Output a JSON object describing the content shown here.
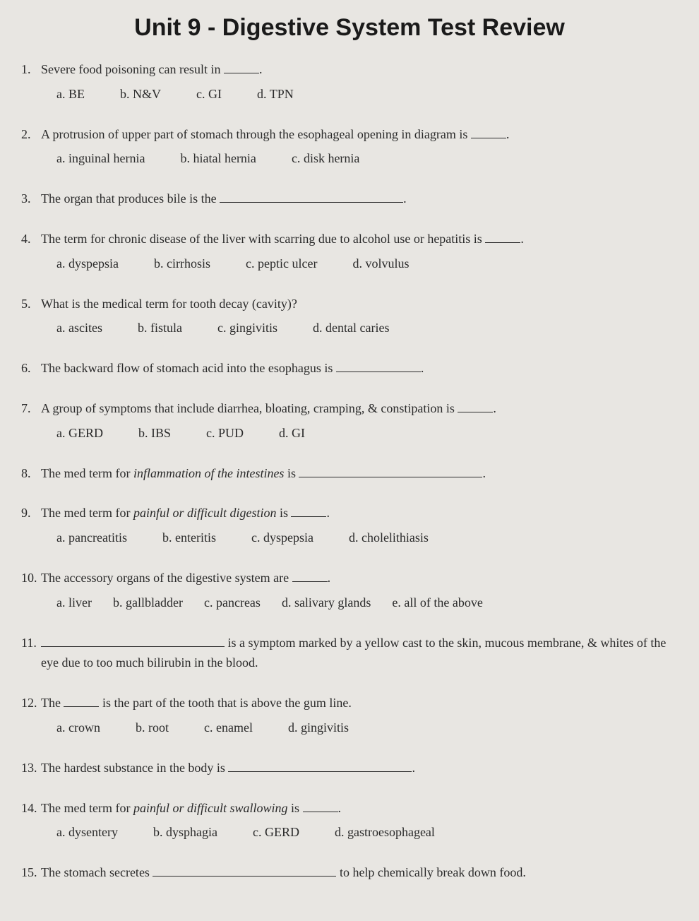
{
  "title": "Unit 9 - Digestive System Test Review",
  "questions": [
    {
      "num": "1.",
      "text_before": "Severe food poisoning can result in ",
      "text_after": ".",
      "blank": "short",
      "options": [
        {
          "letter": "a.",
          "label": "BE"
        },
        {
          "letter": "b.",
          "label": "N&V"
        },
        {
          "letter": "c.",
          "label": "GI"
        },
        {
          "letter": "d.",
          "label": "TPN"
        }
      ]
    },
    {
      "num": "2.",
      "text_before": "A protrusion of upper part of stomach through the esophageal opening in diagram is ",
      "text_after": ".",
      "blank": "short",
      "options": [
        {
          "letter": "a.",
          "label": "inguinal hernia"
        },
        {
          "letter": "b.",
          "label": "hiatal hernia"
        },
        {
          "letter": "c.",
          "label": "disk hernia"
        }
      ]
    },
    {
      "num": "3.",
      "text_before": "The organ that produces bile is the ",
      "text_after": ".",
      "blank": "long",
      "options": []
    },
    {
      "num": "4.",
      "text_before": "The term for chronic disease of the liver with scarring due to alcohol use or hepatitis is ",
      "text_after": ".",
      "blank": "short",
      "options": [
        {
          "letter": "a.",
          "label": "dyspepsia"
        },
        {
          "letter": "b.",
          "label": "cirrhosis"
        },
        {
          "letter": "c.",
          "label": "peptic ulcer"
        },
        {
          "letter": "d.",
          "label": "volvulus"
        }
      ]
    },
    {
      "num": "5.",
      "text_before": "What is the medical term for tooth decay (cavity)?",
      "text_after": "",
      "blank": "",
      "options": [
        {
          "letter": "a.",
          "label": "ascites"
        },
        {
          "letter": "b.",
          "label": "fistula"
        },
        {
          "letter": "c.",
          "label": "gingivitis"
        },
        {
          "letter": "d.",
          "label": "dental caries"
        }
      ]
    },
    {
      "num": "6.",
      "text_before": "The backward flow of stomach acid into the esophagus is ",
      "text_after": ".",
      "blank": "med",
      "options": []
    },
    {
      "num": "7.",
      "text_before": "A group of symptoms that include diarrhea, bloating, cramping, & constipation is ",
      "text_after": ".",
      "blank": "short",
      "options": [
        {
          "letter": "a.",
          "label": "GERD"
        },
        {
          "letter": "b.",
          "label": "IBS"
        },
        {
          "letter": "c.",
          "label": "PUD"
        },
        {
          "letter": "d.",
          "label": "GI"
        }
      ]
    },
    {
      "num": "8.",
      "text_before": "The med term for ",
      "italic": "inflammation of the intestines",
      "text_mid": " is ",
      "text_after": ".",
      "blank": "long",
      "options": []
    },
    {
      "num": "9.",
      "text_before": "The med term for ",
      "italic": "painful or difficult digestion",
      "text_mid": " is ",
      "text_after": ".",
      "blank": "short",
      "options": [
        {
          "letter": "a.",
          "label": "pancreatitis"
        },
        {
          "letter": "b.",
          "label": "enteritis"
        },
        {
          "letter": "c.",
          "label": "dyspepsia"
        },
        {
          "letter": "d.",
          "label": "cholelithiasis"
        }
      ]
    },
    {
      "num": "10.",
      "text_before": "The accessory organs of the digestive system are ",
      "text_after": ".",
      "blank": "short",
      "options": [
        {
          "letter": "a.",
          "label": "liver"
        },
        {
          "letter": "b.",
          "label": "gallbladder"
        },
        {
          "letter": "c.",
          "label": "pancreas"
        },
        {
          "letter": "d.",
          "label": "salivary glands"
        },
        {
          "letter": "e.",
          "label": "all of the above"
        }
      ]
    },
    {
      "num": "11.",
      "text_before": "",
      "blank_first": "long",
      "text_mid": " is a symptom marked by a yellow cast to the skin, mucous membrane, & whites of the eye due to too much bilirubin in the blood.",
      "options": []
    },
    {
      "num": "12.",
      "text_before": "The ",
      "blank": "short",
      "text_after": " is the part of the tooth that is above the gum line.",
      "options": [
        {
          "letter": "a.",
          "label": "crown"
        },
        {
          "letter": "b.",
          "label": "root"
        },
        {
          "letter": "c.",
          "label": "enamel"
        },
        {
          "letter": "d.",
          "label": "gingivitis"
        }
      ]
    },
    {
      "num": "13.",
      "text_before": "The hardest substance in the body is ",
      "text_after": ".",
      "blank": "long",
      "options": []
    },
    {
      "num": "14.",
      "text_before": "The med term for ",
      "italic": "painful or difficult swallowing",
      "text_mid": " is ",
      "text_after": ".",
      "blank": "short",
      "options": [
        {
          "letter": "a.",
          "label": "dysentery"
        },
        {
          "letter": "b.",
          "label": "dysphagia"
        },
        {
          "letter": "c.",
          "label": "GERD"
        },
        {
          "letter": "d.",
          "label": "gastroesophageal"
        }
      ]
    },
    {
      "num": "15.",
      "text_before": "The stomach secretes ",
      "blank": "long",
      "text_after": " to help chemically break down food.",
      "options": []
    }
  ]
}
